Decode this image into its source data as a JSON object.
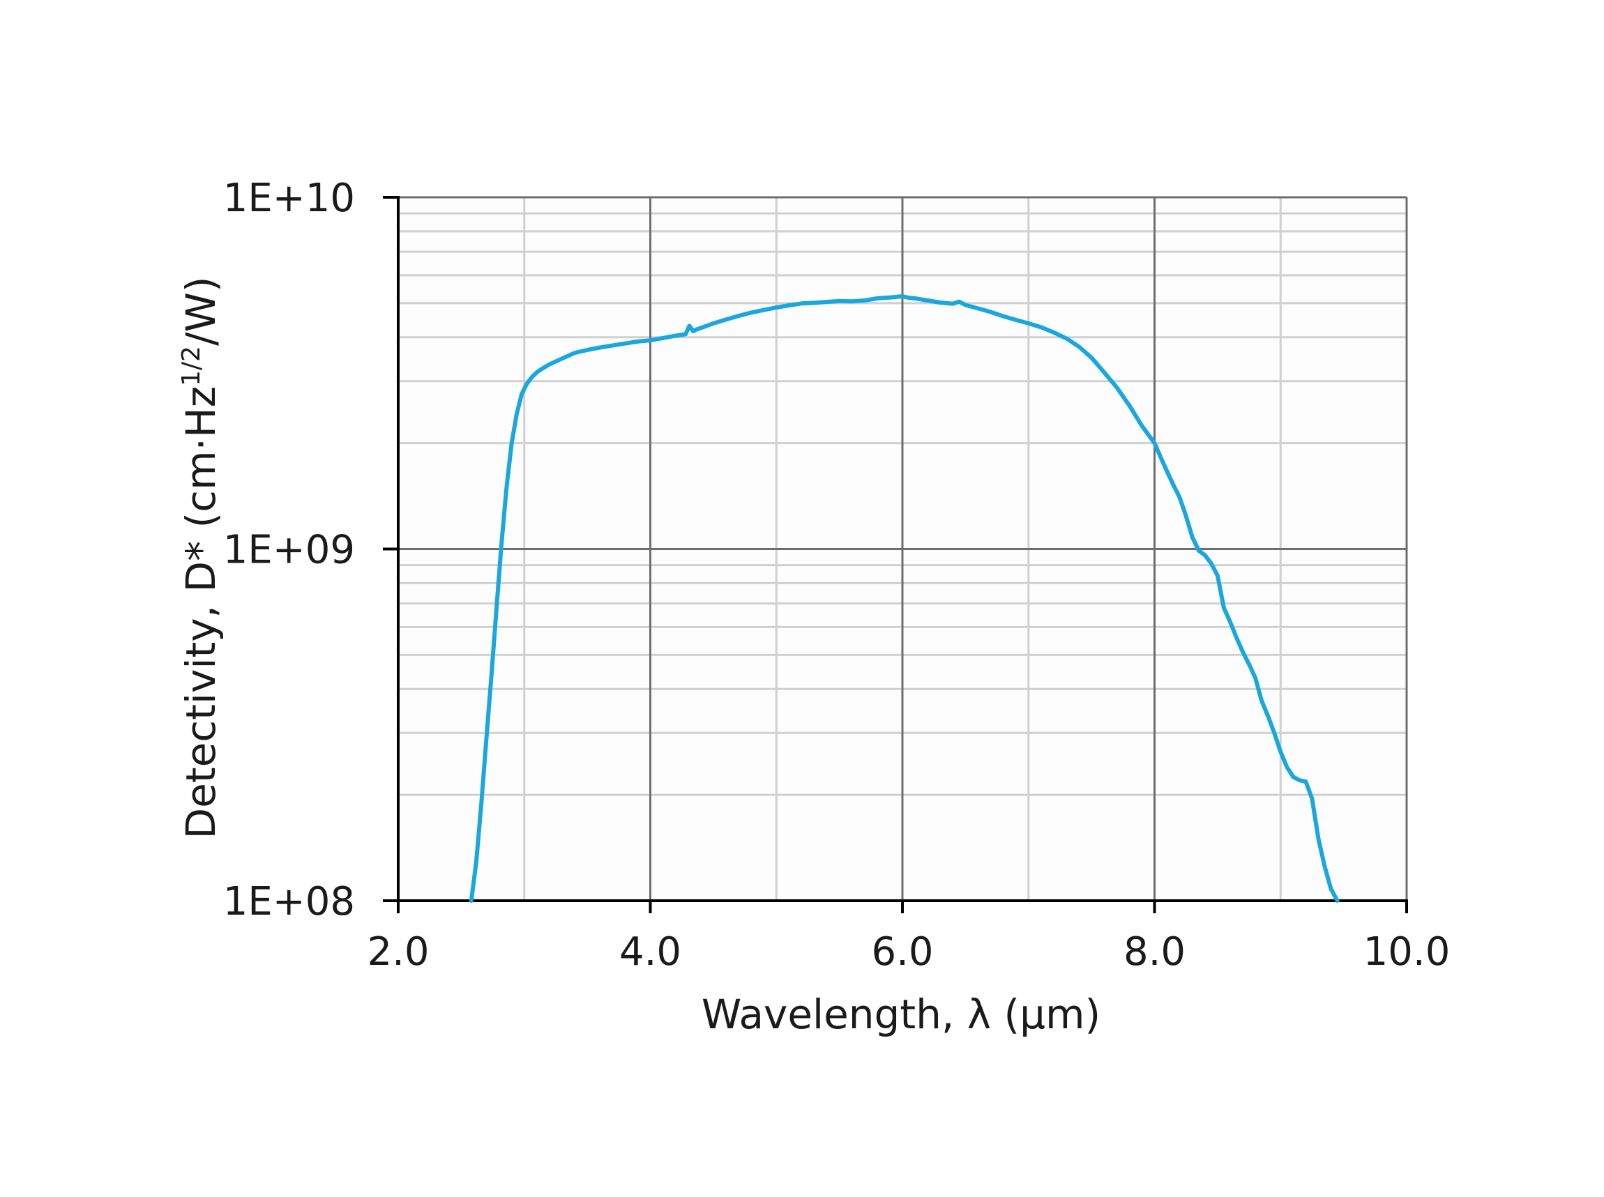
{
  "chart_data": {
    "type": "line",
    "title": "",
    "xlabel": "Wavelength, λ (μm)",
    "ylabel": {
      "prefix": "Detectivity, D* (cm·Hz",
      "superscript": "1/2",
      "suffix": "/W)"
    },
    "xlim": [
      2.0,
      10.0
    ],
    "ylim": [
      100000000,
      10000000000
    ],
    "y_scale": "log",
    "x_ticks": [
      "2.0",
      "4.0",
      "6.0",
      "8.0",
      "10.0"
    ],
    "y_ticks": [
      "1E+08",
      "1E+09",
      "1E+10"
    ],
    "grid": true,
    "legend": "none",
    "colors": {
      "line": "#1aa7de",
      "axis": "#000000",
      "grid_major": "#6e6e6e",
      "grid_minor": "#d0d0d0"
    },
    "series": [
      {
        "x": [
          2.58,
          2.62,
          2.66,
          2.7,
          2.74,
          2.78,
          2.82,
          2.86,
          2.9,
          2.94,
          2.98,
          3.02,
          3.06,
          3.1,
          3.15,
          3.2,
          3.3,
          3.4,
          3.5,
          3.6,
          3.7,
          3.8,
          3.9,
          4.0,
          4.1,
          4.2,
          4.28,
          4.31,
          4.34,
          4.36,
          4.4,
          4.5,
          4.6,
          4.7,
          4.8,
          4.9,
          5.0,
          5.1,
          5.2,
          5.3,
          5.4,
          5.5,
          5.6,
          5.7,
          5.8,
          5.9,
          6.0,
          6.05,
          6.1,
          6.2,
          6.3,
          6.4,
          6.45,
          6.5,
          6.6,
          6.7,
          6.8,
          6.9,
          7.0,
          7.1,
          7.2,
          7.3,
          7.4,
          7.5,
          7.6,
          7.7,
          7.8,
          7.9,
          8.0,
          8.05,
          8.1,
          8.15,
          8.2,
          8.25,
          8.3,
          8.35,
          8.4,
          8.45,
          8.5,
          8.55,
          8.6,
          8.65,
          8.7,
          8.75,
          8.8,
          8.85,
          8.9,
          8.95,
          9.0,
          9.05,
          9.1,
          9.15,
          9.2,
          9.25,
          9.3,
          9.35,
          9.4,
          9.45
        ],
        "y": [
          100000000,
          130000000,
          190000000,
          290000000,
          440000000,
          680000000,
          1040000000,
          1500000000,
          2000000000,
          2420000000,
          2760000000,
          2950000000,
          3080000000,
          3180000000,
          3270000000,
          3350000000,
          3480000000,
          3610000000,
          3680000000,
          3740000000,
          3790000000,
          3840000000,
          3890000000,
          3920000000,
          3980000000,
          4040000000,
          4080000000,
          4310000000,
          4160000000,
          4200000000,
          4250000000,
          4380000000,
          4490000000,
          4600000000,
          4700000000,
          4780000000,
          4860000000,
          4930000000,
          4990000000,
          5010000000,
          5040000000,
          5070000000,
          5060000000,
          5090000000,
          5160000000,
          5190000000,
          5230000000,
          5180000000,
          5160000000,
          5090000000,
          5020000000,
          4980000000,
          5050000000,
          4940000000,
          4830000000,
          4720000000,
          4590000000,
          4480000000,
          4380000000,
          4270000000,
          4130000000,
          3970000000,
          3760000000,
          3500000000,
          3180000000,
          2880000000,
          2560000000,
          2240000000,
          2000000000,
          1820000000,
          1660000000,
          1520000000,
          1400000000,
          1240000000,
          1080000000,
          990000000,
          960000000,
          910000000,
          840000000,
          680000000,
          620000000,
          560000000,
          510000000,
          470000000,
          430000000,
          370000000,
          335000000,
          300000000,
          265000000,
          240000000,
          225000000,
          220000000,
          218000000,
          195000000,
          150000000,
          125000000,
          108000000,
          100000000
        ]
      }
    ]
  }
}
